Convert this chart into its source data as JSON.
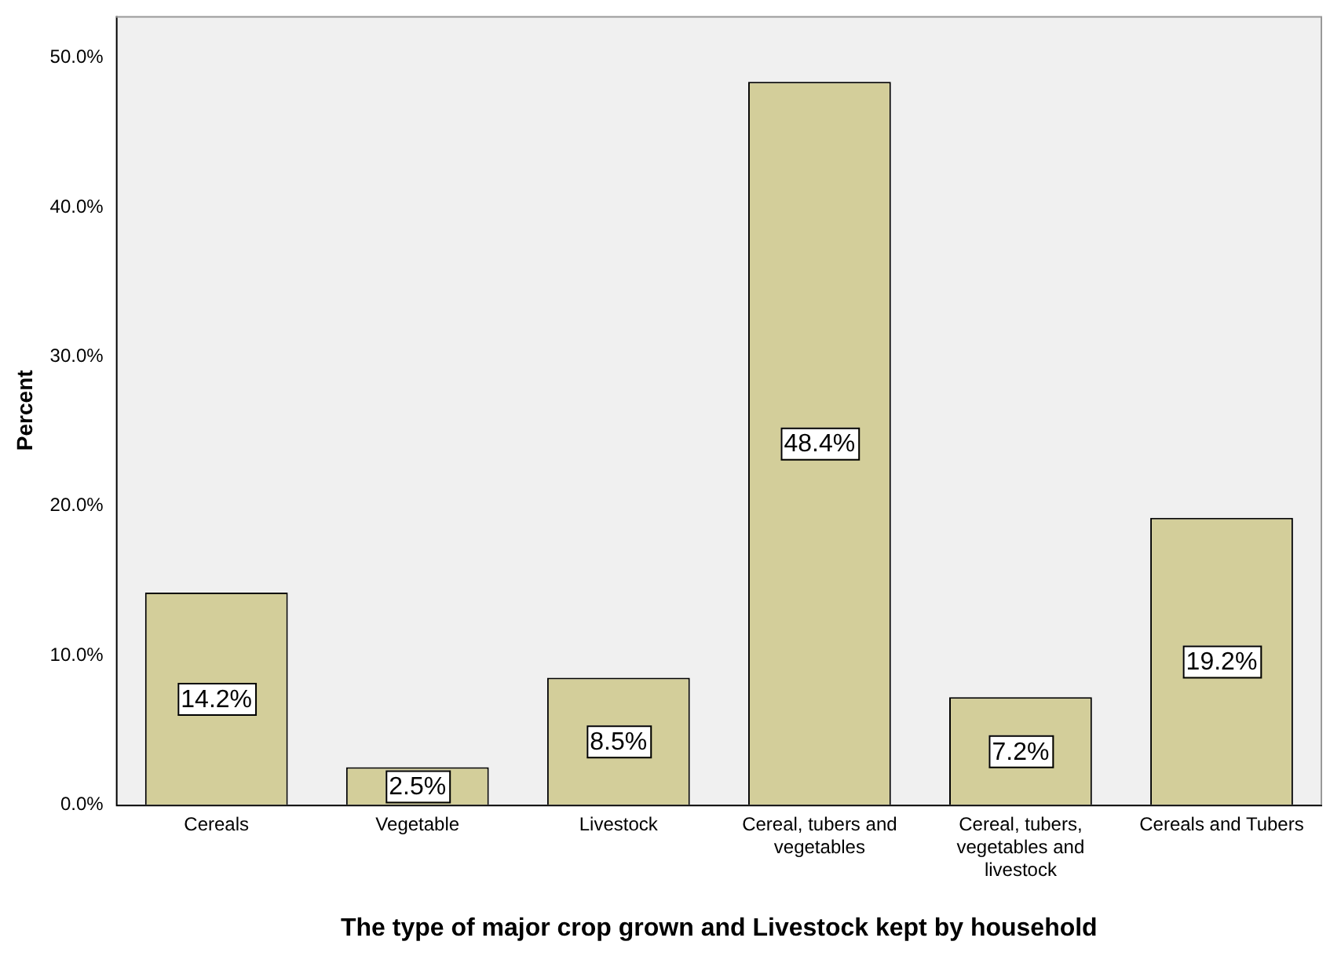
{
  "chart_data": {
    "type": "bar",
    "xlabel": "The type of major crop grown and Livestock kept by household",
    "ylabel": "Percent",
    "categories": [
      "Cereals",
      "Vegetable",
      "Livestock",
      "Cereal, tubers and vegetables",
      "Cereal, tubers, vegetables and livestock",
      "Cereals and Tubers"
    ],
    "values": [
      14.2,
      2.5,
      8.5,
      48.4,
      7.2,
      19.2
    ],
    "value_labels": [
      "14.2%",
      "2.5%",
      "8.5%",
      "48.4%",
      "7.2%",
      "19.2%"
    ],
    "color": "#d3ce9a",
    "ylim": [
      0,
      52.8
    ],
    "yticks": [
      {
        "value": 0,
        "label": "0.0%"
      },
      {
        "value": 10,
        "label": "10.0%"
      },
      {
        "value": 20,
        "label": "20.0%"
      },
      {
        "value": 30,
        "label": "30.0%"
      },
      {
        "value": 40,
        "label": "40.0%"
      },
      {
        "value": 50,
        "label": "50.0%"
      }
    ],
    "grid": false,
    "legend": false
  }
}
